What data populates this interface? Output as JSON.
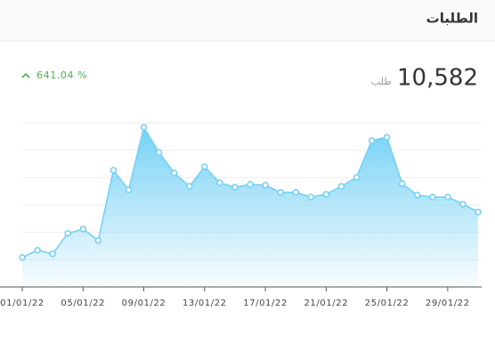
{
  "header": {
    "title": "الطلبات"
  },
  "summary": {
    "total": "10,582",
    "unit": "طلب",
    "change": "641.04 %"
  },
  "chart_data": {
    "type": "area",
    "categories": [
      "01/01/22",
      null,
      null,
      null,
      "05/01/22",
      null,
      null,
      null,
      "09/01/22",
      null,
      null,
      null,
      "13/01/22",
      null,
      null,
      null,
      "17/01/22",
      null,
      null,
      null,
      "21/01/22",
      null,
      null,
      null,
      "25/01/22",
      null,
      null,
      null,
      "29/01/22",
      null,
      null
    ],
    "values": [
      1.08,
      1.34,
      1.21,
      1.96,
      2.12,
      1.7,
      4.27,
      3.55,
      5.84,
      4.92,
      4.17,
      3.68,
      4.4,
      3.81,
      3.65,
      3.75,
      3.72,
      3.46,
      3.46,
      3.29,
      3.39,
      3.68,
      4.01,
      5.35,
      5.48,
      3.78,
      3.36,
      3.29,
      3.29,
      3.03,
      2.74
    ],
    "color": "#6fcff5",
    "ylim": [
      0,
      6
    ],
    "yticks": [
      1,
      2,
      3,
      4,
      5,
      6
    ],
    "grid": true
  }
}
